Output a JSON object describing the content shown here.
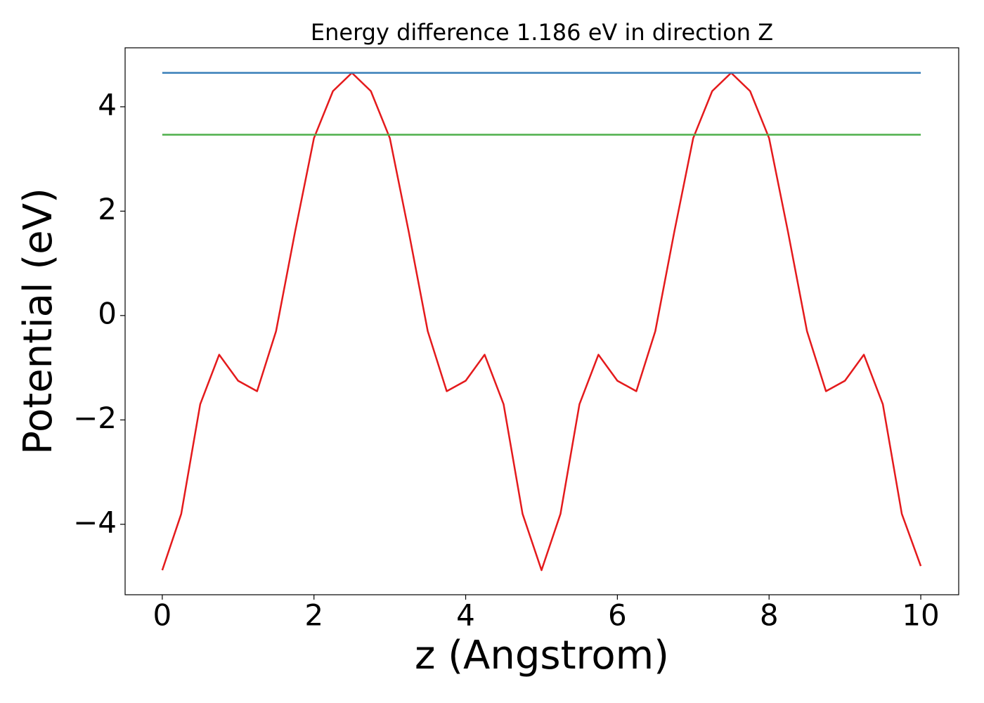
{
  "chart_data": {
    "type": "line",
    "title": "Energy difference 1.186 eV in direction Z",
    "x_label": "z (Angstrom)",
    "y_label": "Potential (eV)",
    "xlim": [
      -0.49,
      10.5
    ],
    "ylim": [
      -5.35,
      5.13
    ],
    "xticks": [
      0,
      2,
      4,
      6,
      8,
      10
    ],
    "yticks": [
      {
        "value": -4,
        "label": "−4"
      },
      {
        "value": -2,
        "label": "−2"
      },
      0,
      2,
      4
    ],
    "grid": false,
    "series": [
      {
        "color": "#e41a1c",
        "x": [
          0,
          0.25,
          0.5,
          0.75,
          1,
          1.25,
          1.5,
          1.75,
          2,
          2.25,
          2.5,
          2.75,
          3,
          3.25,
          3.5,
          3.75,
          4,
          4.25,
          4.5,
          4.75,
          5,
          5.25,
          5.5,
          5.75,
          6,
          6.25,
          6.5,
          6.75,
          7,
          7.25,
          7.5,
          7.75,
          8,
          8.25,
          8.5,
          8.75,
          9,
          9.25,
          9.5,
          9.75,
          10
        ],
        "values": [
          -4.88,
          -3.8,
          -1.7,
          -0.75,
          -1.25,
          -1.45,
          -0.3,
          1.6,
          3.4,
          4.3,
          4.65,
          4.3,
          3.4,
          1.6,
          -0.3,
          -1.45,
          -1.25,
          -0.75,
          -1.7,
          -3.8,
          -4.88,
          -3.8,
          -1.7,
          -0.75,
          -1.25,
          -1.45,
          -0.3,
          1.6,
          3.4,
          4.3,
          4.65,
          4.3,
          3.4,
          1.6,
          -0.3,
          -1.45,
          -1.25,
          -0.75,
          -1.7,
          -3.8,
          -4.8
        ]
      },
      {
        "color": "#377eb8",
        "x": [
          0,
          10
        ],
        "values": [
          4.65,
          4.65
        ]
      },
      {
        "color": "#4daf4a",
        "x": [
          0,
          10
        ],
        "values": [
          3.464,
          3.464
        ]
      }
    ]
  }
}
